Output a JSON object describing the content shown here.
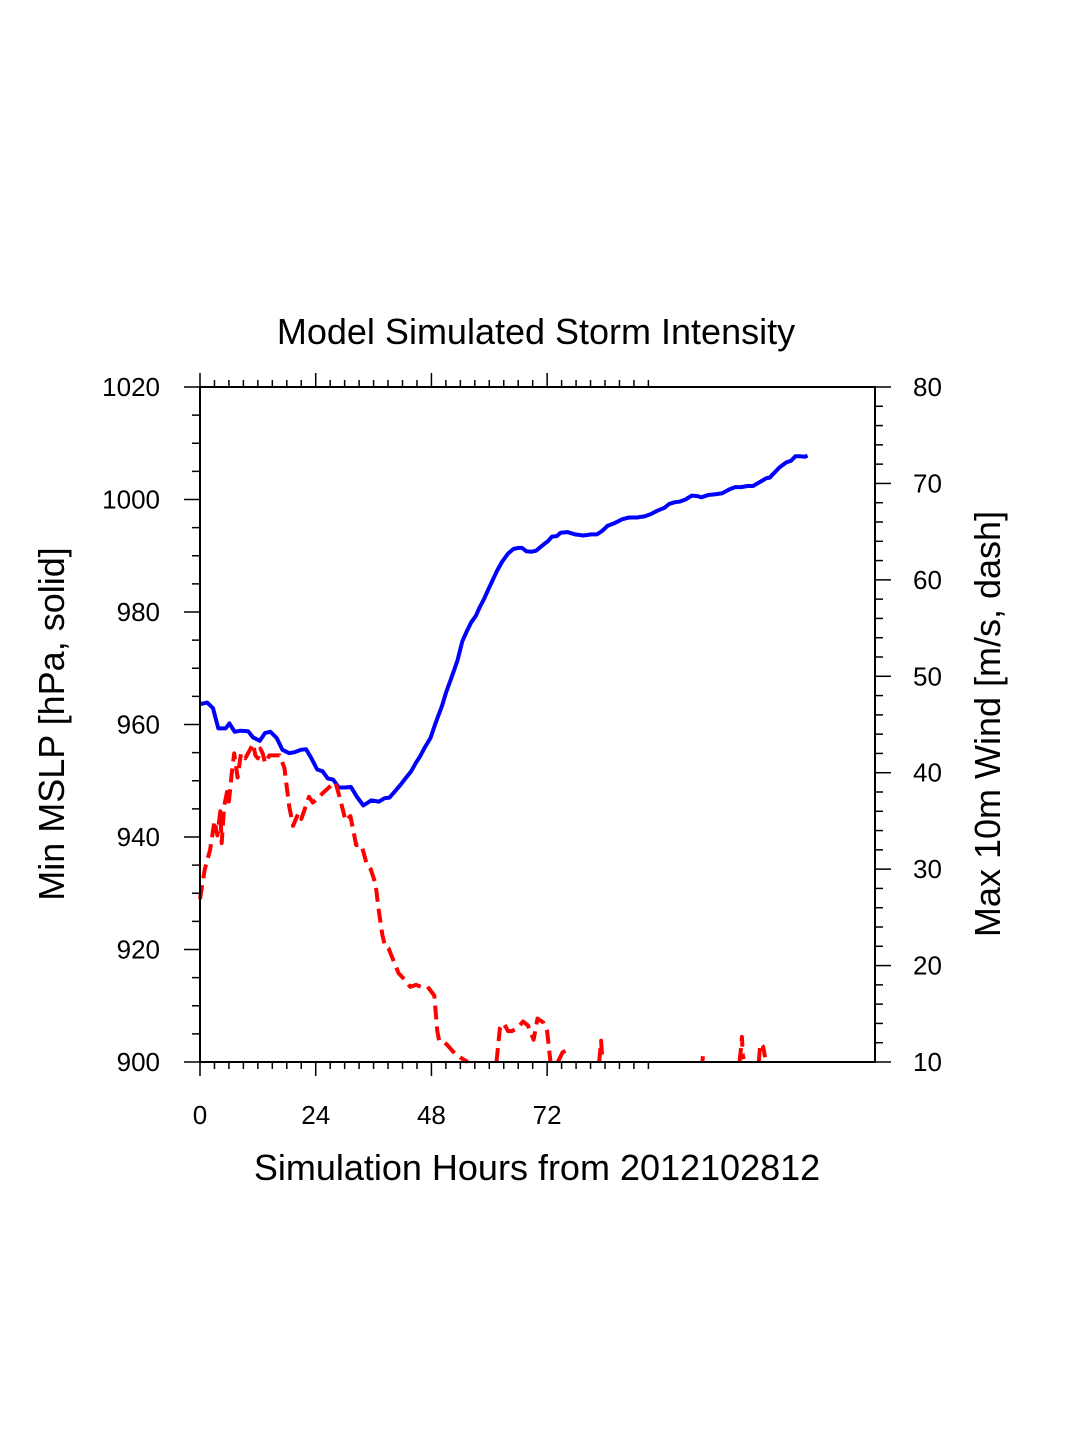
{
  "chart_data": {
    "type": "line",
    "title": "Model Simulated Storm Intensity",
    "xlabel": "Simulation Hours from 2012102812",
    "ylabel_left": "Min MSLP  [hPa, solid]",
    "ylabel_right": "Max 10m Wind  [m/s, dash]",
    "xlim": [
      0,
      140
    ],
    "ylim_left": [
      900,
      1020
    ],
    "ylim_right": [
      10,
      80
    ],
    "x_ticks": [
      0,
      24,
      48,
      72
    ],
    "y_left_ticks": [
      900,
      920,
      940,
      960,
      980,
      1000,
      1020
    ],
    "y_right_ticks": [
      10,
      20,
      30,
      40,
      50,
      60,
      70,
      80
    ],
    "grid": false,
    "series": [
      {
        "axis": "left",
        "color": "#0000ff",
        "style": "solid",
        "x": [
          0,
          1.5,
          2.7,
          3.8,
          5.3,
          6.1,
          7.2,
          8.4,
          10,
          11,
          12.4,
          13.5,
          14.6,
          15.9,
          17.1,
          18.5,
          19.7,
          20.9,
          22,
          23.1,
          24.3,
          25.4,
          26.5,
          27.6,
          28.8,
          30.1,
          31.3,
          32.5,
          33.9,
          35.5,
          37.1,
          38.3,
          39.3,
          40.5,
          41.6,
          42.7,
          43.8,
          44.8,
          45.7,
          46.6,
          47.8,
          48.6,
          49.4,
          50.2,
          51,
          52.3,
          53.4,
          54.4,
          55.4,
          56.2,
          57.2,
          58,
          58.9,
          59.7,
          60.6,
          61.6,
          62.7,
          63.9,
          65,
          66,
          66.8,
          67.7,
          68.7,
          69.7,
          70.7,
          71.4,
          72.2,
          73,
          74,
          74.8,
          76.2,
          77.8,
          79.5,
          81.2,
          82.3,
          83.4,
          84.5,
          86,
          87.6,
          89,
          90.6,
          92.2,
          93.5,
          94.8,
          96.3,
          97.3,
          98.4,
          99.4,
          100.7,
          102,
          103.2,
          104,
          105.4,
          106.7,
          108.3,
          109.8,
          111,
          112.2,
          113.6,
          114.7,
          116.7,
          117.5,
          118.2,
          118.6,
          119.3,
          120.2,
          121.6,
          122.6,
          123.5,
          124.4,
          125.5,
          126
        ],
        "y": [
          963.6,
          963.9,
          962.9,
          959.3,
          959.3,
          960.2,
          958.7,
          958.9,
          958.8,
          957.7,
          957.1,
          958.5,
          958.7,
          957.6,
          955.5,
          954.9,
          955.1,
          955.5,
          955.6,
          954,
          952,
          951.7,
          950.4,
          950.2,
          948.8,
          948.8,
          948.9,
          947.2,
          945.6,
          946.5,
          946.3,
          946.9,
          947,
          948.2,
          949.3,
          950.5,
          951.7,
          953.2,
          954.4,
          955.9,
          957.6,
          959.6,
          961.5,
          963.3,
          965.6,
          968.7,
          971.4,
          974.8,
          976.7,
          978.1,
          979.3,
          980.8,
          982.3,
          983.8,
          985.5,
          987.3,
          989,
          990.4,
          991.2,
          991.4,
          991.4,
          990.8,
          990.7,
          990.9,
          991.6,
          992.1,
          992.6,
          993.4,
          993.5,
          994.1,
          994.2,
          993.8,
          993.6,
          993.8,
          993.8,
          994.4,
          995.3,
          995.8,
          996.5,
          996.8,
          996.8,
          997,
          997.4,
          998,
          998.5,
          999.2,
          999.5,
          999.6,
          1000,
          1000.7,
          1000.6,
          1000.4,
          1000.8,
          1000.9,
          1001.1,
          1001.8,
          1002.2,
          1002.2,
          1002.4,
          1002.4,
          1003.4,
          1003.8,
          1003.9,
          1004.3,
          1004.9,
          1005.7,
          1006.6,
          1006.9,
          1007.7,
          1007.7,
          1007.6,
          1007.8
        ]
      },
      {
        "axis": "right",
        "color": "#ff0000",
        "style": "dash",
        "segments": [
          {
            "x": [
              0,
              1,
              2.1,
              3,
              3.6,
              4.2,
              4.5,
              5,
              5.6,
              6,
              6.6,
              7.1,
              7.8,
              8.5,
              9.4,
              10.5,
              11,
              11.5,
              12,
              12.5,
              13,
              13.5,
              14.4,
              15.4,
              16.5,
              17.5,
              18.5,
              19.3,
              20.4,
              21,
              22.6,
              23.4,
              24.3,
              25.5,
              26.8,
              28.1,
              29.2,
              30.2,
              31.2,
              32.4,
              33.5,
              34.6,
              35.4,
              36.4,
              37,
              37.8,
              38.4,
              39.1,
              39.9,
              41.2,
              42.5,
              43.6,
              44.8,
              45.9,
              47.2,
              48.6,
              49.2,
              49.6,
              50.2,
              51.2,
              52.8,
              54.2,
              55.5
            ],
            "y": [
              26.9,
              30,
              32,
              35,
              33.5,
              36,
              32.7,
              36.5,
              38,
              37,
              40,
              42,
              39.5,
              42,
              41.5,
              42.5,
              43,
              41.8,
              41.5,
              42.5,
              42,
              41,
              41.8,
              41.8,
              41.8,
              40.5,
              36.5,
              34.5,
              35.8,
              35.2,
              37.5,
              36.9,
              37.3,
              37.9,
              38.5,
              39,
              37,
              35,
              35.5,
              32.5,
              32.5,
              30.5,
              30,
              28.5,
              26,
              23.2,
              22,
              21.8,
              20.8,
              19.2,
              18.5,
              17.8,
              18,
              17.8,
              17.8,
              16.9,
              13.3,
              12.2,
              12.2,
              11.8,
              10.9,
              10.4,
              10
            ]
          },
          {
            "x": [
              61.5,
              62.2,
              63,
              63.9,
              64.7,
              66,
              67,
              68,
              69.2,
              70,
              70.6,
              71.2,
              72,
              72.7
            ],
            "y": [
              10,
              13.5,
              14,
              13.2,
              13.2,
              13.6,
              14.2,
              13.8,
              12.3,
              14.5,
              14.3,
              14.1,
              13.2,
              10
            ]
          },
          {
            "x": [
              74.2,
              75.2,
              76
            ],
            "y": [
              10,
              11,
              11.2
            ]
          },
          {
            "x": [
              82.8,
              83.2,
              83.4
            ],
            "y": [
              10,
              12.2,
              10.6
            ]
          },
          {
            "x": [
              104.2,
              104.3
            ],
            "y": [
              10,
              10.6
            ]
          },
          {
            "x": [
              111.9,
              112.2,
              112.4,
              112.6,
              112.8
            ],
            "y": [
              10,
              11.4,
              12.6,
              10.6,
              10.3
            ]
          },
          {
            "x": [
              115.9,
              116.2,
              116.8,
              117.2
            ],
            "y": [
              10,
              11.9,
              11.6,
              10.5
            ]
          }
        ]
      }
    ]
  }
}
